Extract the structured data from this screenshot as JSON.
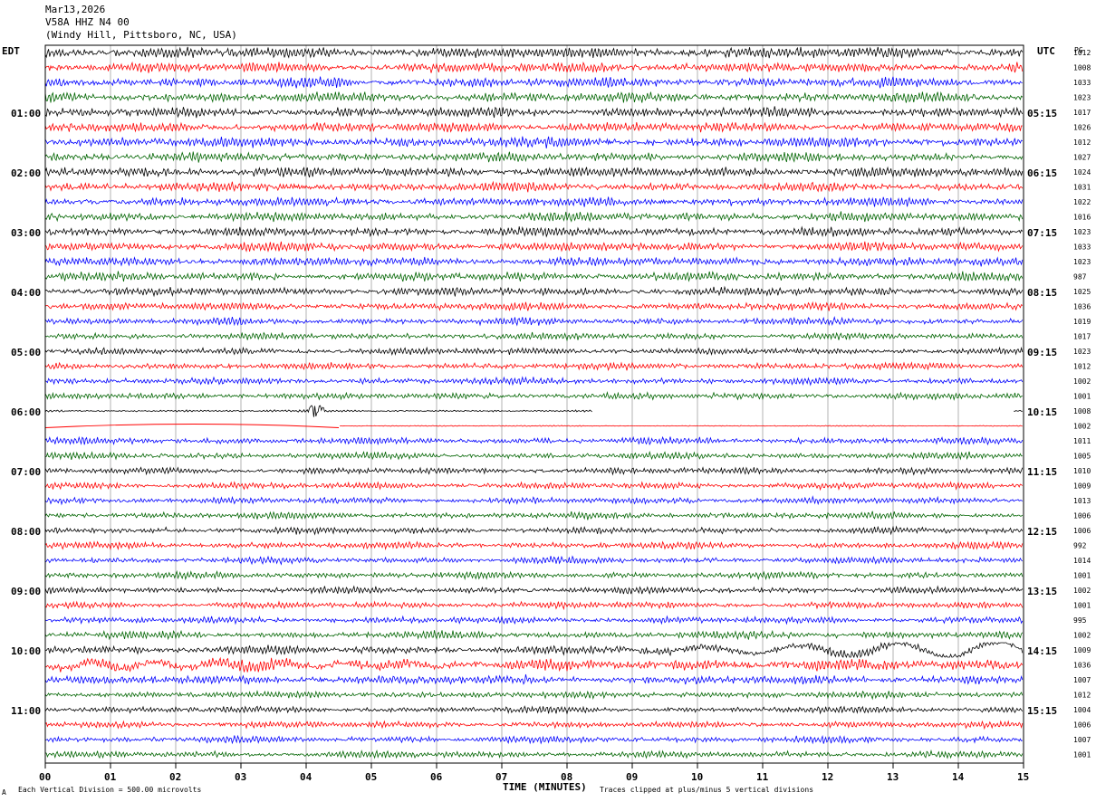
{
  "header": {
    "date": "Mar13,2026",
    "station": "V58A HHZ N4 00",
    "location": "(Windy Hill, Pittsboro, NC, USA)"
  },
  "left_tz": "EDT",
  "right_tz": "UTC",
  "pg_label": "PG",
  "footer": {
    "scale": "Each Vertical Division =  500.00 microvolts",
    "xlabel": "TIME (MINUTES)",
    "clip_note": "Traces clipped at plus/minus 5 vertical divisions",
    "corner": "A"
  },
  "colors": {
    "black": "#000000",
    "red": "#ff0000",
    "blue": "#0000ff",
    "green": "#006400",
    "grid": "#808080"
  },
  "chart_data": {
    "type": "line",
    "xlabel": "TIME (MINUTES)",
    "xlim": [
      0,
      15
    ],
    "x_ticks": [
      "00",
      "01",
      "02",
      "03",
      "04",
      "05",
      "06",
      "07",
      "08",
      "09",
      "10",
      "11",
      "12",
      "13",
      "14",
      "15"
    ],
    "rows_per_hour": 4,
    "minutes_per_row": 15,
    "color_cycle": [
      "black",
      "red",
      "blue",
      "green"
    ],
    "left_hour_labels": [
      "01:00",
      "02:00",
      "03:00",
      "04:00",
      "05:00",
      "06:00",
      "07:00",
      "08:00",
      "09:00",
      "10:00",
      "11:00"
    ],
    "right_hour_labels": [
      "05:15",
      "06:15",
      "07:15",
      "08:15",
      "09:15",
      "10:15",
      "11:15",
      "12:15",
      "13:15",
      "14:15",
      "15:15"
    ],
    "row_offsets": [
      "1012",
      "1008",
      "1033",
      "1023",
      "1017",
      "1026",
      "1012",
      "1027",
      "1024",
      "1031",
      "1022",
      "1016",
      "1023",
      "1033",
      "1023",
      "987",
      "1025",
      "1036",
      "1019",
      "1017",
      "1023",
      "1012",
      "1002",
      "1001",
      "1008",
      "1002",
      "1011",
      "1005",
      "1010",
      "1009",
      "1013",
      "1006",
      "1006",
      "992",
      "1014",
      "1001",
      "1002",
      "1001",
      "995",
      "1002",
      "1009",
      "1036",
      "1007",
      "1012",
      "1004",
      "1006",
      "1007",
      "1001"
    ],
    "row_amplitude": [
      5,
      4.5,
      4.5,
      4.5,
      4.5,
      4.2,
      4.5,
      4.2,
      4.5,
      4,
      4,
      4,
      4,
      4,
      4,
      4,
      3.8,
      3.5,
      3.2,
      3,
      3,
      3,
      3,
      3,
      1,
      0.5,
      3,
      3,
      3,
      3,
      3,
      3,
      3,
      3,
      3,
      3,
      3,
      3,
      3,
      3.5,
      4,
      5,
      4,
      3,
      3,
      3,
      3,
      3
    ],
    "data_gap": {
      "start_row": 24,
      "start_min": 8.4,
      "end_row": 25,
      "end_min": 4.5,
      "resume_row": 24,
      "resume_min": 14.85
    },
    "event": {
      "row": 24,
      "minute": 4.15,
      "amplitude": 6
    },
    "grid": "vertical minute lines"
  }
}
